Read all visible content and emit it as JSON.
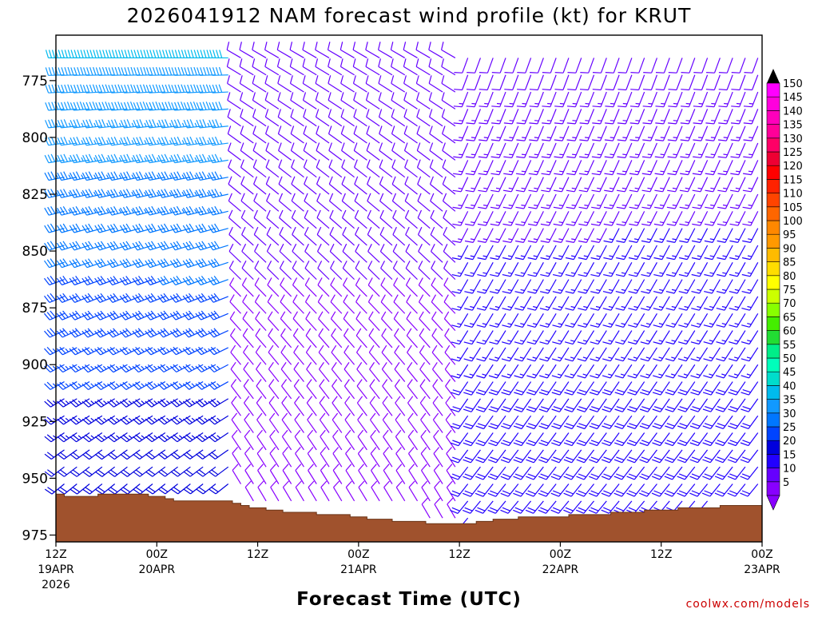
{
  "chart_data": {
    "type": "wind-profile",
    "title": "2026041912 NAM forecast wind profile (kt) for KRUT",
    "xlabel": "Forecast Time (UTC)",
    "ylabel": "",
    "y_ticks": [
      775,
      800,
      825,
      850,
      875,
      900,
      925,
      950,
      975
    ],
    "ylim": [
      755,
      978
    ],
    "xlim_hours": [
      0,
      84
    ],
    "x_ticks": [
      {
        "hour": 0,
        "label": "12Z",
        "date": "19APR",
        "year": "2026"
      },
      {
        "hour": 12,
        "label": "00Z",
        "date": "20APR",
        "year": ""
      },
      {
        "hour": 24,
        "label": "12Z",
        "date": "",
        "year": ""
      },
      {
        "hour": 36,
        "label": "00Z",
        "date": "21APR",
        "year": ""
      },
      {
        "hour": 48,
        "label": "12Z",
        "date": "",
        "year": ""
      },
      {
        "hour": 60,
        "label": "00Z",
        "date": "22APR",
        "year": ""
      },
      {
        "hour": 72,
        "label": "12Z",
        "date": "",
        "year": ""
      },
      {
        "hour": 84,
        "label": "00Z",
        "date": "23APR",
        "year": ""
      }
    ],
    "colorbar": {
      "units": "kt",
      "levels": [
        5,
        10,
        15,
        20,
        25,
        30,
        35,
        40,
        45,
        50,
        55,
        60,
        65,
        70,
        75,
        80,
        85,
        90,
        95,
        100,
        105,
        110,
        115,
        120,
        125,
        130,
        135,
        140,
        145,
        150
      ],
      "colors": [
        "#8800ff",
        "#6600ff",
        "#2200ff",
        "#0000dd",
        "#0044ff",
        "#0077ff",
        "#1199ff",
        "#00bbee",
        "#00ddcc",
        "#00ffbb",
        "#00ee88",
        "#22dd33",
        "#44ee00",
        "#88ff00",
        "#ccff00",
        "#ffff00",
        "#ffdd00",
        "#ffbb00",
        "#ff9900",
        "#ff8800",
        "#ff6600",
        "#ff4400",
        "#ff2200",
        "#ff0000",
        "#ee0033",
        "#ff0066",
        "#ff0099",
        "#ff00bb",
        "#ff00dd",
        "#ff00ff"
      ]
    },
    "surface_pressure": [
      {
        "hour": 0,
        "p": 957
      },
      {
        "hour": 1,
        "p": 958
      },
      {
        "hour": 4,
        "p": 958
      },
      {
        "hour": 5,
        "p": 957
      },
      {
        "hour": 10,
        "p": 957
      },
      {
        "hour": 11,
        "p": 958
      },
      {
        "hour": 13,
        "p": 959
      },
      {
        "hour": 14,
        "p": 960
      },
      {
        "hour": 19,
        "p": 960
      },
      {
        "hour": 21,
        "p": 961
      },
      {
        "hour": 22,
        "p": 962
      },
      {
        "hour": 23,
        "p": 963
      },
      {
        "hour": 25,
        "p": 964
      },
      {
        "hour": 27,
        "p": 965
      },
      {
        "hour": 31,
        "p": 966
      },
      {
        "hour": 35,
        "p": 967
      },
      {
        "hour": 37,
        "p": 968
      },
      {
        "hour": 40,
        "p": 969
      },
      {
        "hour": 44,
        "p": 970
      },
      {
        "hour": 48,
        "p": 970
      },
      {
        "hour": 50,
        "p": 969
      },
      {
        "hour": 52,
        "p": 968
      },
      {
        "hour": 55,
        "p": 967
      },
      {
        "hour": 61,
        "p": 966
      },
      {
        "hour": 64,
        "p": 966
      },
      {
        "hour": 66,
        "p": 965
      },
      {
        "hour": 70,
        "p": 964
      },
      {
        "hour": 74,
        "p": 963
      },
      {
        "hour": 79,
        "p": 962
      },
      {
        "hour": 84,
        "p": 962
      }
    ],
    "wind_regimes": [
      {
        "from_hour": 0,
        "to_hour": 22,
        "upper_speed_kt": 40,
        "upper_dir_deg": 270,
        "lower_speed_kt": 20,
        "lower_dir_deg": 230
      },
      {
        "from_hour": 22,
        "to_hour": 48,
        "upper_speed_kt": 12,
        "upper_dir_deg": 300,
        "lower_speed_kt": 8,
        "lower_dir_deg": 330
      },
      {
        "from_hour": 48,
        "to_hour": 84,
        "upper_speed_kt": 12,
        "upper_dir_deg": 200,
        "lower_speed_kt": 20,
        "lower_dir_deg": 220
      }
    ],
    "credit": "coolwx.com/models"
  }
}
